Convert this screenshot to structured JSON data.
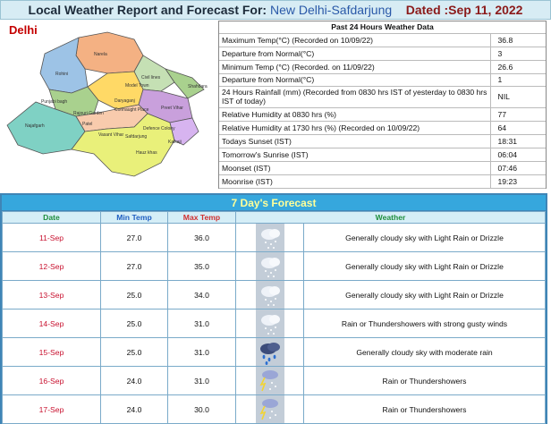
{
  "header": {
    "prefix": "Local Weather Report and Forecast For:",
    "station": "New Delhi-Safdarjung",
    "dated": "Dated :Sep 11, 2022"
  },
  "map": {
    "title": "Delhi",
    "districts": [
      "Narela",
      "Rohini",
      "Civil lines",
      "Model Town",
      "Punjabi bagh",
      "Daryaganj",
      "Rajouri Garden",
      "Connaught Place",
      "Preet Vihar",
      "Shahdara",
      "Seelampur",
      "Vasant Vihar",
      "Safdarjung",
      "Defence Colony",
      "Hauz khas",
      "Kalkaji",
      "Patel Nagar",
      "Karol Bagh",
      "Saraswati Vihar",
      "Najafgarh",
      "Patparganj",
      "Dwarka",
      "Delhi cantt",
      "Mehrauli"
    ],
    "colors": {
      "north": "#f4b183",
      "northwest": "#9dc3e6",
      "west": "#a9d18e",
      "central": "#ffd966",
      "east": "#c9a0dc",
      "south": "#e9f07a",
      "southwest": "#7fd1c4",
      "newdelhi": "#f8cbad"
    }
  },
  "past": {
    "title": "Past 24 Hours Weather Data",
    "rows": [
      {
        "label": "Maximum Temp(°C) (Recorded on 10/09/22)",
        "value": "36.8"
      },
      {
        "label": "Departure from Normal(°C)",
        "value": "3"
      },
      {
        "label": "Minimum Temp (°C) (Recorded. on 11/09/22)",
        "value": "26.6"
      },
      {
        "label": "Departure from Normal(°C)",
        "value": "1"
      },
      {
        "label": "24 Hours Rainfall (mm) (Recorded from 0830 hrs IST of yesterday to 0830 hrs IST of today)",
        "value": "NIL"
      },
      {
        "label": "Relative Humidity at 0830 hrs (%)",
        "value": "77"
      },
      {
        "label": "Relative Humidity at 1730 hrs (%) (Recorded on 10/09/22)",
        "value": "64"
      },
      {
        "label": "Todays Sunset (IST)",
        "value": "18:31"
      },
      {
        "label": "Tomorrow's Sunrise (IST)",
        "value": "06:04"
      },
      {
        "label": "Moonset (IST)",
        "value": "07:46"
      },
      {
        "label": "Moonrise (IST)",
        "value": "19:23"
      }
    ]
  },
  "forecast": {
    "title": "7 Day's Forecast",
    "headers": {
      "date": "Date",
      "min": "Min Temp",
      "max": "Max Temp",
      "weather": "Weather"
    },
    "rows": [
      {
        "date": "11-Sep",
        "min": "27.0",
        "max": "36.0",
        "icon": "cloud-drizzle-icon",
        "weather": "Generally cloudy sky with Light Rain or Drizzle"
      },
      {
        "date": "12-Sep",
        "min": "27.0",
        "max": "35.0",
        "icon": "cloud-drizzle-icon",
        "weather": "Generally cloudy sky with Light Rain or Drizzle"
      },
      {
        "date": "13-Sep",
        "min": "25.0",
        "max": "34.0",
        "icon": "cloud-drizzle-icon",
        "weather": "Generally cloudy sky with Light Rain or Drizzle"
      },
      {
        "date": "14-Sep",
        "min": "25.0",
        "max": "31.0",
        "icon": "cloud-drizzle-icon",
        "weather": "Rain or Thundershowers with strong gusty winds"
      },
      {
        "date": "15-Sep",
        "min": "25.0",
        "max": "31.0",
        "icon": "cloud-rain-icon",
        "weather": "Generally cloudy sky with moderate rain"
      },
      {
        "date": "16-Sep",
        "min": "24.0",
        "max": "31.0",
        "icon": "thunderstorm-icon",
        "weather": "Rain or Thundershowers"
      },
      {
        "date": "17-Sep",
        "min": "24.0",
        "max": "30.0",
        "icon": "thunderstorm-icon",
        "weather": "Rain or Thundershowers"
      }
    ]
  }
}
